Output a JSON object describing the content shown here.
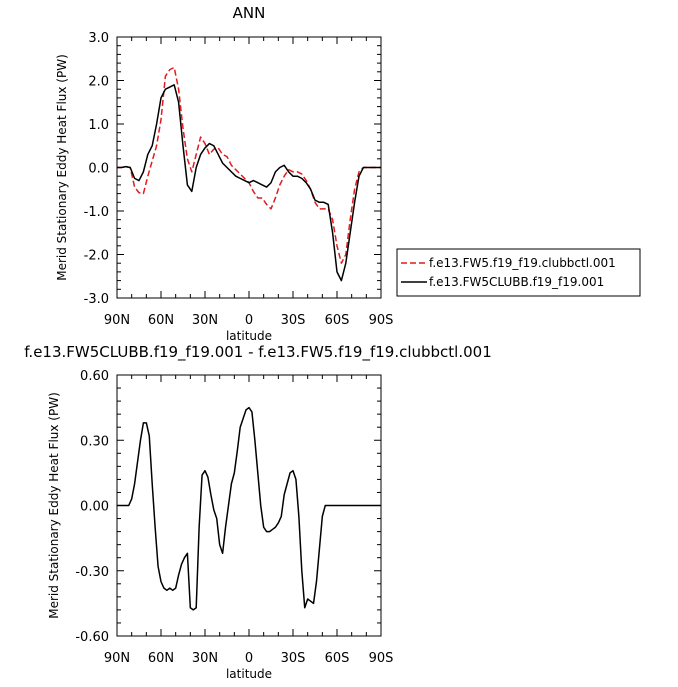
{
  "chart_data": [
    {
      "type": "line",
      "title": "ANN",
      "xlabel": "latitude",
      "ylabel": "Merid Stationary Eddy Heat Flux (PW)",
      "xlim": [
        90,
        -90
      ],
      "ylim": [
        -3.0,
        3.0
      ],
      "xticks": [
        90,
        60,
        30,
        0,
        -30,
        -60,
        -90
      ],
      "xtick_labels": [
        "90N",
        "60N",
        "30N",
        "0",
        "30S",
        "60S",
        "90S"
      ],
      "yticks": [
        -3.0,
        -2.0,
        -1.0,
        0.0,
        1.0,
        2.0,
        3.0
      ],
      "ytick_labels": [
        "-3.0",
        "-2.0",
        "-1.0",
        "0.0",
        "1.0",
        "2.0",
        "3.0"
      ],
      "grid": false,
      "legend": "right",
      "series": [
        {
          "name": "f.e13.FW5.f19_f19.clubbctl.001",
          "color": "#e41a1c",
          "dash": "dashed",
          "x": [
            90,
            87,
            84,
            81,
            78,
            75,
            72,
            69,
            66,
            63,
            60,
            57,
            54,
            51,
            48,
            45,
            42,
            39,
            36,
            33,
            30,
            27,
            24,
            21,
            18,
            15,
            12,
            9,
            6,
            3,
            0,
            -3,
            -6,
            -9,
            -12,
            -15,
            -18,
            -21,
            -24,
            -27,
            -30,
            -33,
            -36,
            -39,
            -42,
            -45,
            -48,
            -51,
            -54,
            -57,
            -60,
            -63,
            -66,
            -69,
            -72,
            -75,
            -78,
            -81,
            -84,
            -87,
            -90
          ],
          "values": [
            0.0,
            0.0,
            0.02,
            0.0,
            -0.45,
            -0.58,
            -0.6,
            -0.2,
            0.15,
            0.5,
            1.1,
            2.1,
            2.25,
            2.3,
            1.8,
            0.9,
            0.2,
            -0.1,
            0.3,
            0.7,
            0.55,
            0.3,
            0.42,
            0.45,
            0.3,
            0.25,
            0.05,
            -0.05,
            -0.15,
            -0.25,
            -0.35,
            -0.55,
            -0.7,
            -0.7,
            -0.85,
            -0.95,
            -0.7,
            -0.4,
            -0.2,
            -0.05,
            -0.1,
            -0.1,
            -0.15,
            -0.3,
            -0.5,
            -0.8,
            -0.95,
            -0.95,
            -0.95,
            -1.2,
            -1.8,
            -2.2,
            -2.0,
            -1.2,
            -0.5,
            -0.1,
            0.0,
            0.0,
            0.0,
            0.0,
            0.0
          ]
        },
        {
          "name": "f.e13.FW5CLUBB.f19_f19.001",
          "color": "#000000",
          "dash": "solid",
          "x": [
            90,
            87,
            84,
            81,
            78,
            75,
            72,
            69,
            66,
            63,
            60,
            57,
            54,
            51,
            48,
            45,
            42,
            39,
            36,
            33,
            30,
            27,
            24,
            21,
            18,
            15,
            12,
            9,
            6,
            3,
            0,
            -3,
            -6,
            -9,
            -12,
            -15,
            -18,
            -21,
            -24,
            -27,
            -30,
            -33,
            -36,
            -39,
            -42,
            -45,
            -48,
            -51,
            -54,
            -57,
            -60,
            -63,
            -66,
            -69,
            -72,
            -75,
            -78,
            -81,
            -84,
            -87,
            -90
          ],
          "values": [
            0.0,
            0.0,
            0.02,
            0.0,
            -0.25,
            -0.3,
            -0.1,
            0.3,
            0.5,
            1.0,
            1.6,
            1.8,
            1.85,
            1.9,
            1.5,
            0.5,
            -0.4,
            -0.55,
            0.0,
            0.3,
            0.45,
            0.55,
            0.5,
            0.3,
            0.1,
            0.0,
            -0.1,
            -0.2,
            -0.25,
            -0.3,
            -0.35,
            -0.3,
            -0.35,
            -0.4,
            -0.45,
            -0.35,
            -0.1,
            0.0,
            0.05,
            -0.1,
            -0.2,
            -0.2,
            -0.25,
            -0.35,
            -0.5,
            -0.75,
            -0.8,
            -0.8,
            -0.85,
            -1.5,
            -2.4,
            -2.6,
            -2.2,
            -1.5,
            -0.8,
            -0.2,
            0.0,
            0.0,
            0.0,
            0.0,
            0.0
          ]
        }
      ]
    },
    {
      "type": "line",
      "title": "f.e13.FW5CLUBB.f19_f19.001 - f.e13.FW5.f19_f19.clubbctl.001",
      "xlabel": "latitude",
      "ylabel": "Merid Stationary Eddy Heat Flux (PW)",
      "xlim": [
        90,
        -90
      ],
      "ylim": [
        -0.6,
        0.6
      ],
      "xticks": [
        90,
        60,
        30,
        0,
        -30,
        -60,
        -90
      ],
      "xtick_labels": [
        "90N",
        "60N",
        "30N",
        "0",
        "30S",
        "60S",
        "90S"
      ],
      "yticks": [
        -0.6,
        -0.3,
        0.0,
        0.3,
        0.6
      ],
      "ytick_labels": [
        "-0.60",
        "-0.30",
        "0.00",
        "0.30",
        "0.60"
      ],
      "grid": false,
      "series": [
        {
          "color": "#000000",
          "dash": "solid",
          "x": [
            90,
            86,
            82,
            80,
            78,
            76,
            74,
            72,
            70,
            68,
            66,
            64,
            62,
            60,
            58,
            56,
            54,
            52,
            50,
            48,
            46,
            44,
            42,
            40,
            38,
            36,
            34,
            32,
            30,
            28,
            26,
            24,
            22,
            20,
            18,
            16,
            14,
            12,
            10,
            8,
            6,
            4,
            2,
            0,
            -2,
            -4,
            -6,
            -8,
            -10,
            -12,
            -14,
            -16,
            -18,
            -20,
            -22,
            -24,
            -26,
            -28,
            -30,
            -32,
            -34,
            -36,
            -38,
            -40,
            -42,
            -44,
            -46,
            -48,
            -50,
            -52,
            -54,
            -56,
            -58,
            -60,
            -62,
            -64,
            -66,
            -68,
            -70,
            -72,
            -74,
            -76,
            -78,
            -80,
            -82,
            -84,
            -86,
            -88,
            -90
          ],
          "values": [
            0.0,
            0.0,
            0.0,
            0.03,
            0.1,
            0.2,
            0.3,
            0.38,
            0.38,
            0.32,
            0.1,
            -0.1,
            -0.28,
            -0.35,
            -0.38,
            -0.39,
            -0.38,
            -0.39,
            -0.38,
            -0.32,
            -0.27,
            -0.24,
            -0.22,
            -0.47,
            -0.48,
            -0.47,
            -0.1,
            0.14,
            0.16,
            0.13,
            0.05,
            -0.02,
            -0.06,
            -0.18,
            -0.22,
            -0.1,
            0.0,
            0.1,
            0.15,
            0.25,
            0.36,
            0.4,
            0.44,
            0.45,
            0.43,
            0.3,
            0.15,
            0.0,
            -0.1,
            -0.12,
            -0.12,
            -0.11,
            -0.1,
            -0.08,
            -0.05,
            0.05,
            0.1,
            0.15,
            0.16,
            0.12,
            -0.05,
            -0.3,
            -0.47,
            -0.43,
            -0.44,
            -0.45,
            -0.35,
            -0.2,
            -0.05,
            0.0,
            0.0,
            0.0,
            0.0,
            0.0,
            0.0,
            0.0,
            0.0,
            0.0,
            0.0,
            0.0,
            0.0,
            0.0,
            0.0,
            0.0,
            0.0,
            0.0,
            0.0,
            0.0,
            0.0
          ]
        }
      ]
    }
  ]
}
